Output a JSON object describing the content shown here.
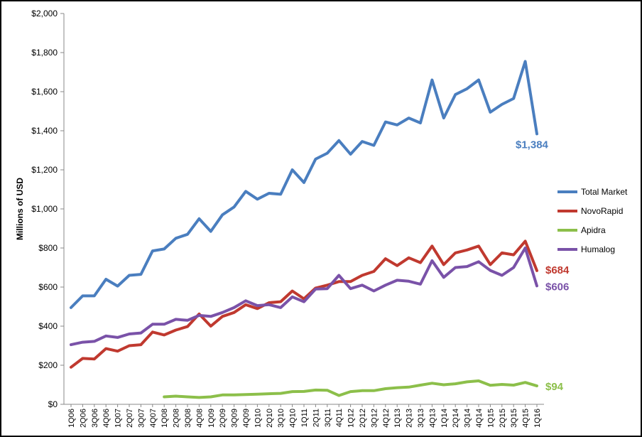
{
  "chart_data": {
    "type": "line",
    "ylabel": "Millions of USD",
    "ylim": [
      0,
      2000
    ],
    "yticks": [
      "$0",
      "$200",
      "$400",
      "$600",
      "$800",
      "$1,000",
      "$1,200",
      "$1,400",
      "$1,600",
      "$1,800",
      "$2,000"
    ],
    "ytick_values": [
      0,
      200,
      400,
      600,
      800,
      1000,
      1200,
      1400,
      1600,
      1800,
      2000
    ],
    "grid": false,
    "legend_position": "right",
    "categories": [
      "1Q06",
      "2Q06",
      "3Q06",
      "4Q06",
      "1Q07",
      "2Q07",
      "3Q07",
      "4Q07",
      "1Q08",
      "2Q08",
      "3Q08",
      "4Q08",
      "1Q09",
      "2Q09",
      "3Q09",
      "4Q09",
      "1Q10",
      "2Q10",
      "3Q10",
      "4Q10",
      "1Q11",
      "2Q11",
      "3Q11",
      "4Q11",
      "1Q12",
      "2Q12",
      "3Q12",
      "4Q12",
      "1Q13",
      "2Q13",
      "3Q13",
      "4Q13",
      "1Q14",
      "2Q14",
      "3Q14",
      "4Q14",
      "1Q15",
      "2Q15",
      "3Q15",
      "4Q15",
      "1Q16"
    ],
    "series": [
      {
        "name": "Total Market",
        "color": "#4a7ebf",
        "end_label": "$1,384",
        "values": [
          495,
          555,
          555,
          640,
          605,
          660,
          665,
          785,
          795,
          850,
          870,
          950,
          885,
          970,
          1010,
          1090,
          1050,
          1080,
          1075,
          1200,
          1135,
          1255,
          1285,
          1350,
          1280,
          1345,
          1325,
          1445,
          1430,
          1465,
          1440,
          1660,
          1465,
          1585,
          1615,
          1660,
          1495,
          1535,
          1565,
          1755,
          1384
        ]
      },
      {
        "name": "NovoRapid",
        "color": "#c0392f",
        "end_label": "$684",
        "values": [
          190,
          235,
          232,
          285,
          272,
          300,
          305,
          370,
          355,
          380,
          398,
          462,
          400,
          450,
          470,
          510,
          490,
          520,
          525,
          580,
          540,
          595,
          610,
          628,
          628,
          660,
          680,
          745,
          710,
          750,
          725,
          810,
          715,
          775,
          790,
          810,
          715,
          775,
          765,
          835,
          684
        ]
      },
      {
        "name": "Apidra",
        "color": "#8cbf4a",
        "end_label": "$94",
        "values": [
          null,
          null,
          null,
          null,
          null,
          null,
          null,
          null,
          38,
          42,
          38,
          35,
          38,
          48,
          48,
          50,
          52,
          54,
          56,
          65,
          66,
          73,
          72,
          45,
          65,
          70,
          70,
          80,
          85,
          88,
          98,
          108,
          100,
          105,
          115,
          120,
          97,
          102,
          98,
          112,
          94
        ]
      },
      {
        "name": "Humalog",
        "color": "#7a52a8",
        "end_label": "$606",
        "values": [
          305,
          318,
          322,
          350,
          342,
          360,
          365,
          410,
          410,
          435,
          430,
          455,
          450,
          470,
          495,
          530,
          505,
          510,
          495,
          550,
          525,
          590,
          592,
          660,
          592,
          610,
          580,
          610,
          635,
          630,
          615,
          735,
          650,
          700,
          705,
          730,
          685,
          660,
          700,
          800,
          606
        ]
      }
    ]
  }
}
